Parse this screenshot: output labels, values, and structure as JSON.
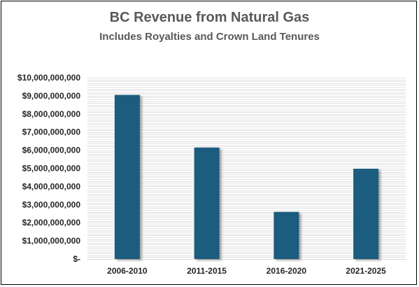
{
  "chart_data": {
    "type": "bar",
    "title": "BC Revenue from Natural Gas",
    "subtitle": "Includes Royalties and Crown Land Tenures",
    "xlabel": "",
    "ylabel": "",
    "categories": [
      "2006-2010",
      "2011-2015",
      "2016-2020",
      "2021-2025"
    ],
    "values": [
      9050000000,
      6150000000,
      2600000000,
      4980000000
    ],
    "ylim": [
      0,
      10000000000
    ],
    "y_ticks": [
      0,
      1000000000,
      2000000000,
      3000000000,
      4000000000,
      5000000000,
      6000000000,
      7000000000,
      8000000000,
      9000000000,
      10000000000
    ],
    "y_tick_labels": [
      "$-",
      "$1,000,000,000",
      "$2,000,000,000",
      "$3,000,000,000",
      "$4,000,000,000",
      "$5,000,000,000",
      "$6,000,000,000",
      "$7,000,000,000",
      "$8,000,000,000",
      "$9,000,000,000",
      "$10,000,000,000"
    ],
    "grid": true,
    "legend": "none",
    "bar_color": "#1b5c7e",
    "grid_color": "#d9d9d9"
  }
}
